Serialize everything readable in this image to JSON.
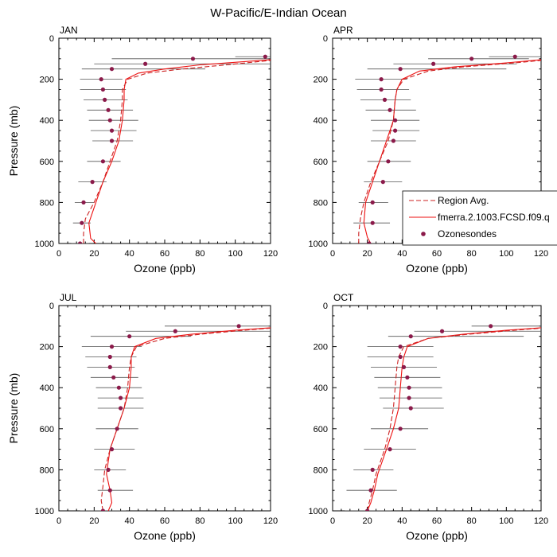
{
  "title": "W-Pacific/E-Indian Ocean",
  "legend": {
    "entries": [
      {
        "label": "Region Avg.",
        "style": "dashed",
        "color": "#cc2222"
      },
      {
        "label": "fmerra.2.1003.FCSD.f09.q",
        "style": "solid",
        "color": "#ee1111"
      },
      {
        "label": "Ozonesondes",
        "style": "marker",
        "color": "#8b1a4a"
      }
    ],
    "placement": "right-middle"
  },
  "colors": {
    "model_line": "#ee1111",
    "region_line": "#cc2222",
    "sonde_marker": "#8b1a4a",
    "error_bar": "#555555"
  },
  "chart_data": [
    {
      "type": "line",
      "label": "JAN",
      "xlabel": "Ozone (ppb)",
      "ylabel": "Pressure (mb)",
      "xlim": [
        0,
        120
      ],
      "ylim": [
        1000,
        0
      ],
      "xticks": [
        0,
        20,
        40,
        60,
        80,
        100,
        120
      ],
      "yticks": [
        0,
        200,
        400,
        600,
        800,
        1000
      ],
      "series": [
        {
          "style": "solid",
          "x": [
            21,
            18,
            17,
            21,
            25,
            30,
            34,
            36,
            37,
            37,
            38,
            45,
            60,
            80,
            120
          ],
          "y": [
            1000,
            975,
            900,
            800,
            700,
            600,
            500,
            400,
            300,
            250,
            200,
            170,
            150,
            130,
            105
          ]
        },
        {
          "style": "dashed",
          "x": [
            14,
            14,
            15,
            20,
            25,
            29,
            33,
            35,
            36,
            36,
            39,
            50,
            70,
            95,
            120
          ],
          "y": [
            1000,
            950,
            880,
            800,
            700,
            600,
            500,
            400,
            300,
            250,
            200,
            170,
            150,
            130,
            108
          ]
        }
      ],
      "sondes": {
        "p": [
          90,
          100,
          125,
          150,
          200,
          250,
          300,
          350,
          400,
          450,
          500,
          600,
          700,
          800,
          900,
          1000
        ],
        "o3": [
          117,
          76,
          49,
          30,
          24,
          25,
          26,
          28,
          29,
          30,
          30,
          25,
          19,
          14,
          13,
          12
        ],
        "err_low": [
          100,
          30,
          20,
          13,
          12,
          12,
          14,
          16,
          17,
          18,
          19,
          16,
          11,
          9,
          8,
          7
        ],
        "err_high": [
          121,
          121,
          121,
          83,
          36,
          38,
          39,
          42,
          45,
          44,
          42,
          35,
          27,
          20,
          18,
          17
        ]
      }
    },
    {
      "type": "line",
      "label": "APR",
      "xlabel": "Ozone (ppb)",
      "ylabel": "",
      "xlim": [
        0,
        120
      ],
      "ylim": [
        1000,
        0
      ],
      "xticks": [
        0,
        20,
        40,
        60,
        80,
        100,
        120
      ],
      "yticks": [
        0,
        200,
        400,
        600,
        800,
        1000
      ],
      "series": [
        {
          "style": "solid",
          "x": [
            22,
            20,
            18,
            19,
            23,
            27,
            31,
            35,
            36,
            37,
            40,
            50,
            70,
            100,
            120
          ],
          "y": [
            1000,
            970,
            900,
            800,
            700,
            600,
            500,
            400,
            300,
            250,
            200,
            160,
            140,
            120,
            105
          ]
        },
        {
          "style": "dashed",
          "x": [
            15,
            15,
            16,
            18,
            22,
            27,
            32,
            35,
            36,
            37,
            41,
            55,
            75,
            105,
            120
          ],
          "y": [
            1000,
            950,
            880,
            800,
            700,
            600,
            500,
            400,
            300,
            250,
            200,
            160,
            140,
            120,
            108
          ]
        }
      ],
      "sondes": {
        "p": [
          90,
          100,
          125,
          150,
          200,
          250,
          300,
          350,
          400,
          450,
          500,
          600,
          700,
          800,
          900,
          1000
        ],
        "o3": [
          105,
          80,
          58,
          39,
          28,
          28,
          30,
          33,
          36,
          36,
          35,
          32,
          29,
          23,
          23,
          21
        ],
        "err_low": [
          90,
          55,
          35,
          20,
          13,
          14,
          16,
          19,
          22,
          23,
          22,
          20,
          18,
          15,
          12,
          8
        ],
        "err_high": [
          121,
          113,
          106,
          100,
          43,
          44,
          45,
          48,
          50,
          50,
          48,
          45,
          40,
          32,
          33,
          34
        ]
      }
    },
    {
      "type": "line",
      "label": "JUL",
      "xlabel": "Ozone (ppb)",
      "ylabel": "Pressure (mb)",
      "xlim": [
        0,
        120
      ],
      "ylim": [
        1000,
        0
      ],
      "xticks": [
        0,
        20,
        40,
        60,
        80,
        100,
        120
      ],
      "yticks": [
        0,
        200,
        400,
        600,
        800,
        1000
      ],
      "series": [
        {
          "style": "solid",
          "x": [
            28,
            30,
            29,
            27,
            29,
            33,
            37,
            40,
            41,
            41,
            43,
            55,
            75,
            100,
            120
          ],
          "y": [
            1000,
            960,
            900,
            820,
            700,
            600,
            500,
            400,
            300,
            250,
            200,
            160,
            140,
            120,
            108
          ]
        },
        {
          "style": "dashed",
          "x": [
            25,
            24,
            25,
            26,
            29,
            33,
            37,
            39,
            40,
            41,
            44,
            60,
            80,
            105,
            120
          ],
          "y": [
            1000,
            950,
            880,
            800,
            700,
            600,
            500,
            400,
            300,
            250,
            200,
            160,
            140,
            120,
            110
          ]
        }
      ],
      "sondes": {
        "p": [
          100,
          125,
          150,
          200,
          250,
          300,
          350,
          400,
          450,
          500,
          600,
          700,
          800,
          900,
          1000
        ],
        "o3": [
          102,
          66,
          40,
          30,
          29,
          29,
          31,
          34,
          35,
          35,
          33,
          30,
          28,
          29,
          25
        ],
        "err_low": [
          60,
          38,
          18,
          13,
          15,
          16,
          18,
          21,
          22,
          22,
          21,
          20,
          20,
          22,
          12
        ],
        "err_high": [
          121,
          121,
          75,
          47,
          44,
          43,
          45,
          47,
          48,
          48,
          45,
          43,
          38,
          42,
          38
        ]
      }
    },
    {
      "type": "line",
      "label": "OCT",
      "xlabel": "Ozone (ppb)",
      "ylabel": "",
      "xlim": [
        0,
        120
      ],
      "ylim": [
        1000,
        0
      ],
      "xticks": [
        0,
        20,
        40,
        60,
        80,
        100,
        120
      ],
      "yticks": [
        0,
        200,
        400,
        600,
        800,
        1000
      ],
      "series": [
        {
          "style": "solid",
          "x": [
            20,
            22,
            24,
            26,
            31,
            35,
            38,
            39,
            40,
            41,
            43,
            55,
            75,
            100,
            120
          ],
          "y": [
            1000,
            960,
            900,
            820,
            700,
            600,
            500,
            400,
            300,
            250,
            200,
            160,
            140,
            120,
            108
          ]
        },
        {
          "style": "dashed",
          "x": [
            20,
            21,
            23,
            25,
            30,
            33,
            35,
            36,
            37,
            38,
            41,
            55,
            78,
            105,
            120
          ],
          "y": [
            1000,
            960,
            900,
            820,
            700,
            600,
            500,
            400,
            300,
            250,
            200,
            160,
            140,
            120,
            110
          ]
        }
      ],
      "sondes": {
        "p": [
          100,
          125,
          150,
          200,
          250,
          300,
          350,
          400,
          450,
          500,
          600,
          700,
          800,
          900,
          1000
        ],
        "o3": [
          91,
          63,
          45,
          39,
          39,
          41,
          43,
          44,
          44,
          45,
          39,
          33,
          23,
          22,
          20
        ],
        "err_low": [
          80,
          47,
          32,
          20,
          20,
          22,
          24,
          26,
          27,
          29,
          22,
          18,
          12,
          8,
          7
        ],
        "err_high": [
          121,
          121,
          110,
          58,
          58,
          60,
          62,
          63,
          63,
          64,
          55,
          48,
          35,
          37,
          34
        ]
      }
    }
  ]
}
